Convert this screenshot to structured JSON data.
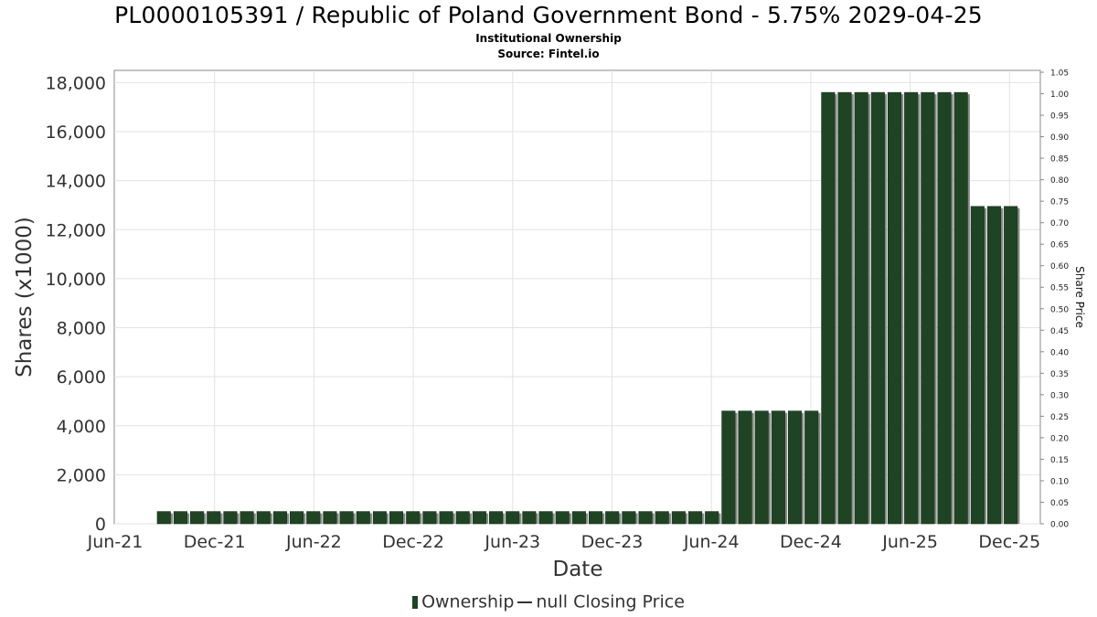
{
  "header": {
    "title": "PL0000105391 / Republic of Poland Government Bond - 5.75% 2029-04-25",
    "subtitle": "Institutional Ownership",
    "source": "Source: Fintel.io"
  },
  "legend": {
    "ownership": "Ownership",
    "price": "null Closing Price"
  },
  "colors": {
    "bar": "#1f4423",
    "bar_shadow": "#8a8a8a",
    "grid": "#e2e2e2",
    "axis": "#888888"
  },
  "chart_data": {
    "type": "bar",
    "title": "PL0000105391 / Republic of Poland Government Bond - 5.75% 2029-04-25",
    "xlabel": "Date",
    "ylabel": "Shares (x1000)",
    "y2label": "Share Price",
    "ylim": [
      0,
      18500
    ],
    "y2lim": [
      0,
      1.05
    ],
    "grid": true,
    "legend_position": "bottom-center",
    "x_ticks": [
      "Jun-21",
      "Dec-21",
      "Jun-22",
      "Dec-22",
      "Jun-23",
      "Dec-23",
      "Jun-24",
      "Dec-24",
      "Jun-25",
      "Dec-25"
    ],
    "y_ticks": [
      "0",
      "2,000",
      "4,000",
      "6,000",
      "8,000",
      "10,000",
      "12,000",
      "14,000",
      "16,000",
      "18,000"
    ],
    "y2_ticks": [
      "0.00",
      "0.05",
      "0.10",
      "0.15",
      "0.20",
      "0.25",
      "0.30",
      "0.35",
      "0.40",
      "0.45",
      "0.50",
      "0.55",
      "0.60",
      "0.65",
      "0.70",
      "0.75",
      "0.80",
      "0.85",
      "0.90",
      "0.95",
      "1.00",
      "1.05"
    ],
    "series": [
      {
        "name": "Ownership",
        "values": [
          500,
          500,
          500,
          500,
          500,
          500,
          500,
          500,
          500,
          500,
          500,
          500,
          500,
          500,
          500,
          500,
          500,
          500,
          500,
          500,
          500,
          500,
          500,
          500,
          500,
          500,
          500,
          500,
          500,
          500,
          500,
          500,
          500,
          500,
          4600,
          4600,
          4600,
          4600,
          4600,
          4600,
          17600,
          17600,
          17600,
          17600,
          17600,
          17600,
          17600,
          17600,
          17600,
          12950,
          12950,
          12950
        ]
      }
    ]
  }
}
